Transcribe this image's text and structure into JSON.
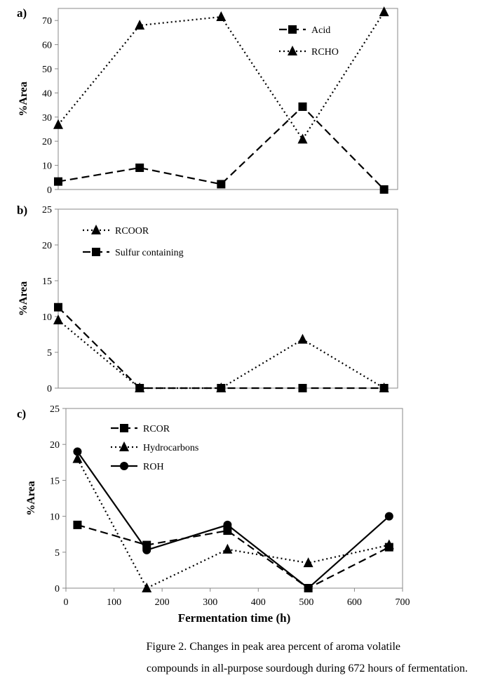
{
  "chart_data": [
    {
      "type": "line",
      "panel_label": "a)",
      "ylabel": "%Area",
      "ylim": [
        0,
        75
      ],
      "yticks": [
        0,
        10,
        20,
        30,
        40,
        50,
        60,
        70
      ],
      "xlim": [
        0,
        700
      ],
      "show_x_tick_labels": false,
      "legend_position": "top-right",
      "x": [
        0,
        168,
        336,
        504,
        672
      ],
      "series": [
        {
          "name": "Acid",
          "style": "dashed",
          "marker": "square",
          "values": [
            3.3,
            9,
            2.2,
            34.3,
            0
          ]
        },
        {
          "name": "RCHO",
          "style": "dotted",
          "marker": "triangle",
          "values": [
            26.8,
            68,
            71.5,
            20.8,
            73.5
          ]
        }
      ]
    },
    {
      "type": "line",
      "panel_label": "b)",
      "ylabel": "%Area",
      "ylim": [
        0,
        25
      ],
      "yticks": [
        0,
        5,
        10,
        15,
        20,
        25
      ],
      "xlim": [
        0,
        700
      ],
      "show_x_tick_labels": false,
      "legend_position": "top-left",
      "x": [
        0,
        168,
        336,
        504,
        672
      ],
      "series": [
        {
          "name": "RCOOR",
          "style": "dotted",
          "marker": "triangle",
          "values": [
            9.5,
            0,
            0,
            6.8,
            0
          ]
        },
        {
          "name": "Sulfur containing",
          "style": "dashed",
          "marker": "square",
          "values": [
            11.3,
            0,
            0,
            0,
            0
          ]
        }
      ]
    },
    {
      "type": "line",
      "panel_label": "c)",
      "ylabel": "%Area",
      "xlabel": "Fermentation  time  (h)",
      "ylim": [
        0,
        25
      ],
      "yticks": [
        0,
        5,
        10,
        15,
        20,
        25
      ],
      "xlim": [
        0,
        700
      ],
      "xticks": [
        0,
        100,
        200,
        300,
        400,
        500,
        600,
        700
      ],
      "show_x_tick_labels": true,
      "legend_position": "top-left",
      "x": [
        24,
        168,
        336,
        504,
        672
      ],
      "series": [
        {
          "name": "RCOR",
          "style": "dashed",
          "marker": "square",
          "values": [
            8.8,
            6,
            8,
            0,
            5.7
          ]
        },
        {
          "name": "Hydrocarbons",
          "style": "dotted",
          "marker": "triangle",
          "values": [
            18,
            0,
            5.4,
            3.5,
            6
          ]
        },
        {
          "name": "ROH",
          "style": "solid",
          "marker": "circle",
          "values": [
            19,
            5.3,
            8.8,
            0,
            10
          ]
        }
      ]
    }
  ],
  "caption": {
    "line1": "Figure 2. Changes in peak area percent of aroma volatile",
    "line2": "compounds in all-purpose sourdough during 672 hours of fermentation."
  }
}
